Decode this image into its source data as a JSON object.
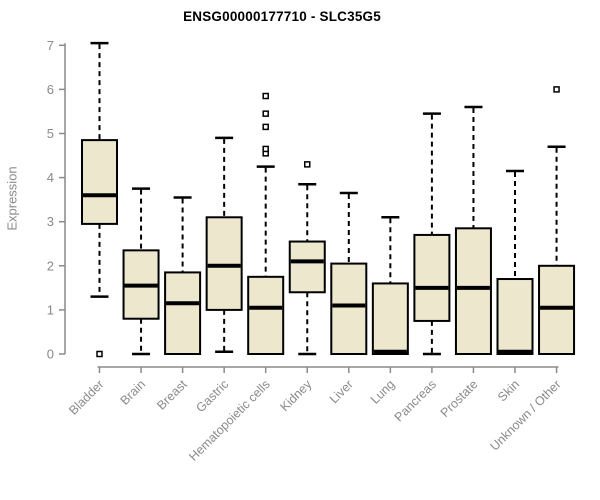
{
  "title": "ENSG00000177710 - SLC35G5",
  "chart_data": {
    "type": "boxplot",
    "title": "ENSG00000177710 - SLC35G5",
    "ylabel": "Expression",
    "xlabel": "",
    "ylim": [
      0,
      7
    ],
    "yticks": [
      0,
      1,
      2,
      3,
      4,
      5,
      6,
      7
    ],
    "grid": false,
    "legend": "none",
    "categories": [
      "Bladder",
      "Brain",
      "Breast",
      "Gastric",
      "Hematopoietic cells",
      "Kidney",
      "Liver",
      "Lung",
      "Pancreas",
      "Prostate",
      "Skin",
      "Unknown / Other"
    ],
    "boxes": [
      {
        "category": "Bladder",
        "whisker_low": 1.3,
        "q1": 2.95,
        "median": 3.6,
        "q3": 4.85,
        "whisker_high": 7.05,
        "outliers": [
          0
        ]
      },
      {
        "category": "Brain",
        "whisker_low": 0,
        "q1": 0.8,
        "median": 1.55,
        "q3": 2.35,
        "whisker_high": 3.75,
        "outliers": []
      },
      {
        "category": "Breast",
        "whisker_low": 0,
        "q1": 0,
        "median": 1.15,
        "q3": 1.85,
        "whisker_high": 3.55,
        "outliers": []
      },
      {
        "category": "Gastric",
        "whisker_low": 0.05,
        "q1": 1.0,
        "median": 2.0,
        "q3": 3.1,
        "whisker_high": 4.9,
        "outliers": []
      },
      {
        "category": "Hematopoietic cells",
        "whisker_low": 0,
        "q1": 0,
        "median": 1.05,
        "q3": 1.75,
        "whisker_high": 4.25,
        "outliers": [
          4.55,
          4.65,
          5.15,
          5.45,
          5.85
        ]
      },
      {
        "category": "Kidney",
        "whisker_low": 0,
        "q1": 1.4,
        "median": 2.1,
        "q3": 2.55,
        "whisker_high": 3.85,
        "outliers": [
          4.3
        ]
      },
      {
        "category": "Liver",
        "whisker_low": 0,
        "q1": 0,
        "median": 1.1,
        "q3": 2.05,
        "whisker_high": 3.65,
        "outliers": []
      },
      {
        "category": "Lung",
        "whisker_low": 0,
        "q1": 0,
        "median": 0.05,
        "q3": 1.6,
        "whisker_high": 3.1,
        "outliers": []
      },
      {
        "category": "Pancreas",
        "whisker_low": 0,
        "q1": 0.75,
        "median": 1.5,
        "q3": 2.7,
        "whisker_high": 5.45,
        "outliers": []
      },
      {
        "category": "Prostate",
        "whisker_low": 0,
        "q1": 0,
        "median": 1.5,
        "q3": 2.85,
        "whisker_high": 5.6,
        "outliers": []
      },
      {
        "category": "Skin",
        "whisker_low": 0,
        "q1": 0,
        "median": 0.05,
        "q3": 1.7,
        "whisker_high": 4.15,
        "outliers": []
      },
      {
        "category": "Unknown / Other",
        "whisker_low": 0,
        "q1": 0,
        "median": 1.05,
        "q3": 2.0,
        "whisker_high": 4.7,
        "outliers": [
          6.0
        ]
      }
    ],
    "colors": {
      "box_fill": "#EDE8CD",
      "box_stroke": "#000000",
      "median": "#000000",
      "axis": "#8A8A8A",
      "tick_label": "#8A8A8A",
      "title": "#000000",
      "background": "#FFFFFF"
    }
  }
}
